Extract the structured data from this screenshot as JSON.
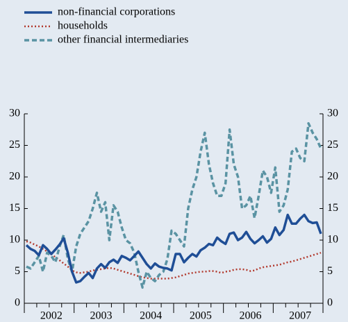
{
  "chart_data": {
    "type": "line",
    "categories": [
      null,
      null,
      null,
      null,
      null,
      null,
      "2002",
      null,
      null,
      null,
      null,
      null,
      null,
      null,
      null,
      null,
      null,
      null,
      "2003",
      null,
      null,
      null,
      null,
      null,
      null,
      null,
      null,
      null,
      null,
      null,
      "2004",
      null,
      null,
      null,
      null,
      null,
      null,
      null,
      null,
      null,
      null,
      null,
      "2005",
      null,
      null,
      null,
      null,
      null,
      null,
      null,
      null,
      null,
      null,
      null,
      "2006",
      null,
      null,
      null,
      null,
      null,
      null,
      null,
      null,
      null,
      null,
      null,
      "2007",
      null,
      null,
      null,
      null,
      null
    ],
    "series": [
      {
        "name": "non-financial corporations",
        "color": "#1f4e96",
        "style": "solid",
        "values": [
          9.2,
          8.6,
          8.3,
          7.6,
          9.2,
          8.6,
          7.8,
          8.5,
          9.3,
          10.3,
          8.0,
          5.0,
          3.3,
          3.5,
          4.2,
          4.8,
          4.0,
          5.5,
          6.2,
          5.6,
          6.5,
          6.9,
          6.4,
          7.5,
          7.2,
          6.8,
          7.5,
          8.2,
          7.2,
          6.2,
          5.5,
          6.3,
          5.8,
          5.6,
          5.5,
          5.2,
          7.8,
          7.8,
          6.5,
          7.2,
          7.8,
          7.4,
          8.4,
          8.8,
          9.4,
          9.2,
          10.4,
          9.8,
          9.4,
          11.0,
          11.2,
          10.0,
          10.4,
          11.3,
          10.2,
          9.5,
          10.0,
          10.6,
          9.6,
          10.2,
          12.0,
          10.8,
          11.6,
          14.0,
          12.6,
          12.6,
          13.4,
          14.0,
          13.0,
          12.7,
          12.8,
          11.0
        ]
      },
      {
        "name": "households",
        "color": "#b23a2e",
        "style": "dotted",
        "values": [
          9.8,
          9.6,
          9.3,
          9.0,
          8.6,
          8.2,
          7.8,
          7.3,
          6.8,
          6.3,
          5.8,
          5.2,
          4.9,
          4.8,
          4.9,
          5.0,
          5.2,
          5.3,
          5.4,
          5.5,
          5.6,
          5.5,
          5.3,
          5.1,
          4.9,
          4.7,
          4.5,
          4.3,
          4.1,
          4.0,
          3.9,
          3.9,
          3.9,
          3.9,
          3.9,
          4.0,
          4.1,
          4.3,
          4.5,
          4.7,
          4.8,
          4.9,
          5.0,
          5.0,
          5.1,
          5.1,
          5.0,
          4.8,
          5.0,
          5.1,
          5.3,
          5.4,
          5.4,
          5.3,
          5.1,
          5.2,
          5.5,
          5.7,
          5.8,
          5.9,
          6.0,
          6.1,
          6.3,
          6.5,
          6.6,
          6.8,
          7.0,
          7.2,
          7.4,
          7.6,
          7.8,
          8.0
        ]
      },
      {
        "name": "other financial intermediaries",
        "color": "#5a93a3",
        "style": "dashed",
        "values": [
          5.8,
          5.5,
          6.5,
          7.5,
          5.0,
          8.0,
          7.5,
          6.5,
          9.0,
          10.8,
          7.0,
          5.0,
          9.0,
          11.0,
          12.0,
          13.0,
          15.0,
          17.5,
          14.5,
          16.0,
          10.0,
          15.5,
          14.5,
          12.0,
          10.0,
          9.5,
          8.0,
          5.0,
          2.5,
          5.0,
          4.0,
          3.5,
          4.5,
          5.0,
          7.0,
          11.5,
          11.0,
          10.0,
          9.0,
          15.0,
          18.0,
          20.0,
          24.0,
          27.0,
          22.0,
          19.0,
          17.0,
          17.0,
          19.0,
          27.5,
          22.0,
          20.0,
          15.0,
          15.5,
          17.0,
          13.5,
          17.0,
          21.0,
          20.0,
          17.5,
          21.5,
          14.5,
          15.5,
          18.0,
          24.0,
          24.5,
          23.0,
          22.5,
          28.5,
          27.0,
          26.0,
          24.5
        ]
      }
    ],
    "ylim": [
      0,
      30
    ],
    "yticks": [
      0,
      5,
      10,
      15,
      20,
      25,
      30
    ],
    "legend": "top-left"
  }
}
